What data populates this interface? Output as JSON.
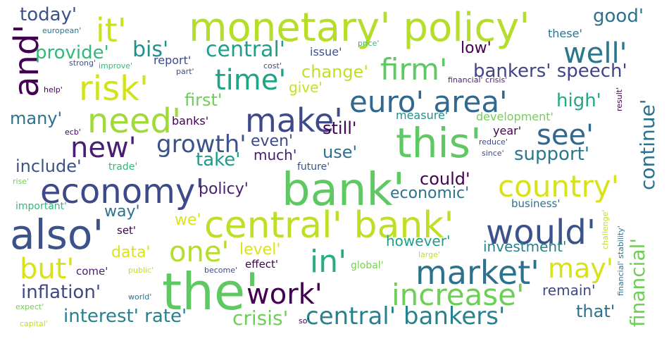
{
  "words": [
    {
      "text": "the'",
      "color": "#5ec962"
    },
    {
      "text": "bank'",
      "color": "#5ec962"
    },
    {
      "text": "monetary' policy'",
      "color": "#b5de2b"
    },
    {
      "text": "central' bank'",
      "color": "#bddf26"
    },
    {
      "text": "also'",
      "color": "#3b528b"
    },
    {
      "text": "economy'",
      "color": "#3e4989"
    },
    {
      "text": "this'",
      "color": "#5ec962"
    },
    {
      "text": "market'",
      "color": "#2c728e"
    },
    {
      "text": "would'",
      "color": "#3b528b"
    },
    {
      "text": "euro' area'",
      "color": "#31688e"
    },
    {
      "text": "need'",
      "color": "#a0da39"
    },
    {
      "text": "risk'",
      "color": "#d2e21b"
    },
    {
      "text": "country'",
      "color": "#d8e219"
    },
    {
      "text": "make'",
      "color": "#3e4989"
    },
    {
      "text": "increase'",
      "color": "#6ece58"
    },
    {
      "text": "central' bankers'",
      "color": "#26828e"
    },
    {
      "text": "work'",
      "color": "#440154"
    },
    {
      "text": "in'",
      "color": "#27ad81"
    },
    {
      "text": "it'",
      "color": "#cae11f"
    },
    {
      "text": "and'",
      "color": "#440154"
    },
    {
      "text": "firm'",
      "color": "#5ec962"
    },
    {
      "text": "see'",
      "color": "#31688e"
    },
    {
      "text": "well'",
      "color": "#2a768e"
    },
    {
      "text": "time'",
      "color": "#20a486"
    },
    {
      "text": "new'",
      "color": "#481f70"
    },
    {
      "text": "one'",
      "color": "#b5de2b"
    },
    {
      "text": "but'",
      "color": "#d8e219"
    },
    {
      "text": "may'",
      "color": "#d8e219"
    },
    {
      "text": "growth'",
      "color": "#3b528b"
    },
    {
      "text": "bis'",
      "color": "#21918c"
    },
    {
      "text": "central'",
      "color": "#1f9e89"
    },
    {
      "text": "provide'",
      "color": "#35b779"
    },
    {
      "text": "interest' rate'",
      "color": "#26828e"
    },
    {
      "text": "crisis'",
      "color": "#6ece58"
    },
    {
      "text": "bankers' speech'",
      "color": "#414487"
    },
    {
      "text": "inflation'",
      "color": "#3e4989"
    },
    {
      "text": "financial'",
      "color": "#6ece58"
    },
    {
      "text": "continue'",
      "color": "#2c728e"
    },
    {
      "text": "today'",
      "color": "#3b528b"
    },
    {
      "text": "good'",
      "color": "#2c728e"
    },
    {
      "text": "high'",
      "color": "#22a884"
    },
    {
      "text": "support'",
      "color": "#2a788e"
    },
    {
      "text": "change'",
      "color": "#c2df23"
    },
    {
      "text": "first'",
      "color": "#6ece58"
    },
    {
      "text": "still'",
      "color": "#440154"
    },
    {
      "text": "many'",
      "color": "#2c728e"
    },
    {
      "text": "include'",
      "color": "#3b528b"
    },
    {
      "text": "take'",
      "color": "#1f9a8a"
    },
    {
      "text": "use'",
      "color": "#2c728e"
    },
    {
      "text": "even'",
      "color": "#3e4989"
    },
    {
      "text": "much'",
      "color": "#481f70"
    },
    {
      "text": "could'",
      "color": "#440154"
    },
    {
      "text": "economic'",
      "color": "#2c728e"
    },
    {
      "text": "policy'",
      "color": "#481f70"
    },
    {
      "text": "way'",
      "color": "#2c728e"
    },
    {
      "text": "we'",
      "color": "#dde318"
    },
    {
      "text": "level'",
      "color": "#dde318"
    },
    {
      "text": "however'",
      "color": "#1f9e89"
    },
    {
      "text": "investment'",
      "color": "#26828e"
    },
    {
      "text": "data'",
      "color": "#dde318"
    },
    {
      "text": "remain'",
      "color": "#3e4989"
    },
    {
      "text": "that'",
      "color": "#2c728e"
    },
    {
      "text": "low'",
      "color": "#440154"
    },
    {
      "text": "give'",
      "color": "#c8e020"
    },
    {
      "text": "banks'",
      "color": "#440154"
    },
    {
      "text": "measure'",
      "color": "#21918c"
    },
    {
      "text": "development'",
      "color": "#73d056"
    },
    {
      "text": "year'",
      "color": "#440154"
    },
    {
      "text": "these'",
      "color": "#2c728e"
    },
    {
      "text": "issue'",
      "color": "#3b528b"
    },
    {
      "text": "report'",
      "color": "#3e4989"
    },
    {
      "text": "trade'",
      "color": "#35b779"
    },
    {
      "text": "future'",
      "color": "#3b528b"
    },
    {
      "text": "business'",
      "color": "#2c728e"
    },
    {
      "text": "important'",
      "color": "#35b779"
    },
    {
      "text": "set'",
      "color": "#440154"
    },
    {
      "text": "come'",
      "color": "#481f70"
    },
    {
      "text": "effect'",
      "color": "#440154"
    },
    {
      "text": "global'",
      "color": "#7ad151"
    },
    {
      "text": "european'",
      "color": "#2c728e"
    },
    {
      "text": "price'",
      "color": "#35b779"
    },
    {
      "text": "strong'",
      "color": "#3b528b"
    },
    {
      "text": "improve'",
      "color": "#35b779"
    },
    {
      "text": "cost'",
      "color": "#3e4989"
    },
    {
      "text": "part'",
      "color": "#3e4989"
    },
    {
      "text": "help'",
      "color": "#440154"
    },
    {
      "text": "ecb'",
      "color": "#440154"
    },
    {
      "text": "rise'",
      "color": "#73d056"
    },
    {
      "text": "public'",
      "color": "#bddf26"
    },
    {
      "text": "become'",
      "color": "#3e4989"
    },
    {
      "text": "world'",
      "color": "#2c728e"
    },
    {
      "text": "expect'",
      "color": "#73d056"
    },
    {
      "text": "capital'",
      "color": "#bddf26"
    },
    {
      "text": "so'",
      "color": "#440154"
    },
    {
      "text": "large'",
      "color": "#bddf26"
    },
    {
      "text": "reduce'",
      "color": "#3e4989"
    },
    {
      "text": "since'",
      "color": "#3e4989"
    },
    {
      "text": "financial' crisis'",
      "color": "#481f70"
    },
    {
      "text": "result'",
      "color": "#440154"
    },
    {
      "text": "challenge'",
      "color": "#bddf26"
    },
    {
      "text": "financial' stability'",
      "color": "#2c728e"
    }
  ]
}
